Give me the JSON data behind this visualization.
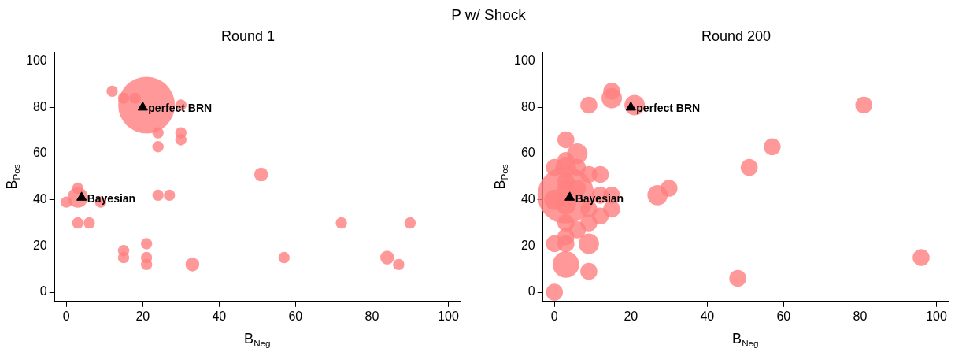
{
  "chart_data": [
    {
      "type": "bubble",
      "title": "Round 1",
      "xlabel": "B$_{Neg}$",
      "ylabel": "B$_{Pos}$",
      "xlim": [
        -3,
        103
      ],
      "ylim": [
        -4,
        104
      ],
      "xticks": [
        0,
        20,
        40,
        60,
        80,
        100
      ],
      "yticks": [
        0,
        20,
        40,
        60,
        80,
        100
      ],
      "grid": false,
      "legend": false,
      "annotations": [
        "P w/ Shock"
      ],
      "series": [
        {
          "color": "#ff8080",
          "x": [
            12,
            15,
            18,
            21,
            30,
            24,
            24,
            30,
            30,
            51,
            3,
            3,
            0,
            9,
            3,
            6,
            24,
            27,
            15,
            15,
            21,
            21,
            21,
            33,
            72,
            90,
            57,
            84,
            87
          ],
          "values": [
            87,
            84,
            84,
            81,
            81,
            69,
            63,
            69,
            66,
            51,
            41,
            45,
            39,
            39,
            30,
            30,
            42,
            42,
            18,
            15,
            21,
            15,
            12,
            12,
            30,
            30,
            15,
            15,
            12
          ],
          "sizes": [
            0.04,
            0.04,
            0.04,
            1,
            0.04,
            0.04,
            0.04,
            0.04,
            0.04,
            0.06,
            0.13,
            0.04,
            0.04,
            0.04,
            0.04,
            0.04,
            0.04,
            0.04,
            0.04,
            0.04,
            0.04,
            0.04,
            0.04,
            0.06,
            0.04,
            0.04,
            0.04,
            0.06,
            0.04
          ]
        },
        {
          "type": "scatter",
          "name": "perfect BRN",
          "color": "#000000",
          "marker": "triangle",
          "x": [
            20
          ],
          "values": [
            80
          ]
        },
        {
          "type": "scatter",
          "name": "Bayesian",
          "color": "#000000",
          "marker": "triangle",
          "x": [
            4
          ],
          "values": [
            41
          ]
        }
      ]
    },
    {
      "type": "bubble",
      "title": "Round 200",
      "xlabel": "B$_{Neg}$",
      "ylabel": "B$_{Pos}$",
      "xlim": [
        -3,
        103
      ],
      "ylim": [
        -4,
        104
      ],
      "xticks": [
        0,
        20,
        40,
        60,
        80,
        100
      ],
      "yticks": [
        0,
        20,
        40,
        60,
        80,
        100
      ],
      "grid": false,
      "legend": false,
      "series": [
        {
          "color": "#ff8080",
          "x": [
            15,
            15,
            9,
            21,
            3,
            6,
            0,
            3,
            3,
            6,
            9,
            12,
            3,
            3,
            3,
            6,
            0,
            3,
            12,
            15,
            9,
            15,
            12,
            3,
            9,
            6,
            3,
            3,
            0,
            9,
            3,
            9,
            0,
            27,
            30,
            51,
            57,
            81,
            48,
            96
          ],
          "values": [
            87,
            84,
            81,
            81,
            66,
            60,
            54,
            57,
            54,
            54,
            51,
            51,
            42,
            48,
            45,
            45,
            40,
            38,
            42,
            42,
            36,
            36,
            33,
            30,
            30,
            27,
            24,
            21,
            21,
            21,
            12,
            9,
            0,
            42,
            45,
            54,
            63,
            81,
            6,
            15
          ],
          "sizes": [
            0.09,
            0.13,
            0.09,
            0.13,
            0.09,
            0.13,
            0.09,
            0.09,
            0.13,
            0.09,
            0.09,
            0.09,
            1,
            0.09,
            0.09,
            0.09,
            0.13,
            0.13,
            0.09,
            0.09,
            0.09,
            0.09,
            0.09,
            0.09,
            0.09,
            0.09,
            0.09,
            0.09,
            0.09,
            0.13,
            0.22,
            0.09,
            0.09,
            0.13,
            0.09,
            0.09,
            0.09,
            0.09,
            0.09,
            0.09
          ]
        },
        {
          "type": "scatter",
          "name": "perfect BRN",
          "color": "#000000",
          "marker": "triangle",
          "x": [
            20
          ],
          "values": [
            80
          ]
        },
        {
          "type": "scatter",
          "name": "Bayesian",
          "color": "#000000",
          "marker": "triangle",
          "x": [
            4
          ],
          "values": [
            41
          ]
        }
      ]
    }
  ]
}
